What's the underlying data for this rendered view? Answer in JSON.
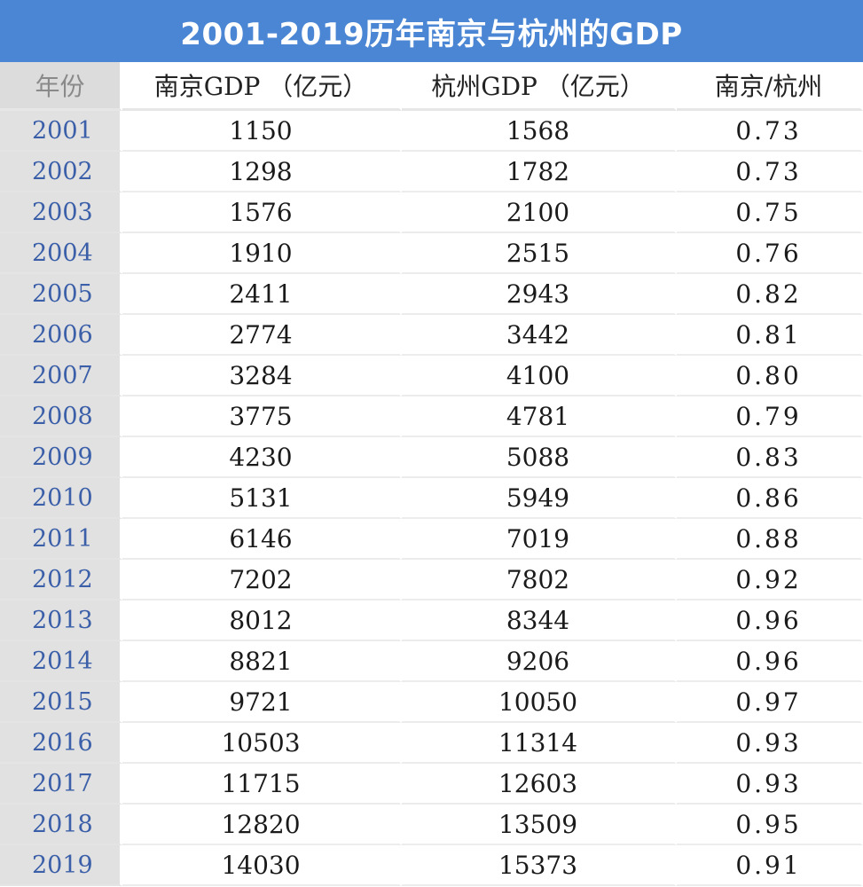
{
  "chart_data": {
    "type": "table",
    "title": "2001-2019历年南京与杭州的GDP",
    "columns": [
      "年份",
      "南京GDP （亿元）",
      "杭州GDP （亿元）",
      "南京/杭州"
    ],
    "rows": [
      {
        "year": "2001",
        "nanjing": "1150",
        "hangzhou": "1568",
        "ratio": "0.73"
      },
      {
        "year": "2002",
        "nanjing": "1298",
        "hangzhou": "1782",
        "ratio": "0.73"
      },
      {
        "year": "2003",
        "nanjing": "1576",
        "hangzhou": "2100",
        "ratio": "0.75"
      },
      {
        "year": "2004",
        "nanjing": "1910",
        "hangzhou": "2515",
        "ratio": "0.76"
      },
      {
        "year": "2005",
        "nanjing": "2411",
        "hangzhou": "2943",
        "ratio": "0.82"
      },
      {
        "year": "2006",
        "nanjing": "2774",
        "hangzhou": "3442",
        "ratio": "0.81"
      },
      {
        "year": "2007",
        "nanjing": "3284",
        "hangzhou": "4100",
        "ratio": "0.80"
      },
      {
        "year": "2008",
        "nanjing": "3775",
        "hangzhou": "4781",
        "ratio": "0.79"
      },
      {
        "year": "2009",
        "nanjing": "4230",
        "hangzhou": "5088",
        "ratio": "0.83"
      },
      {
        "year": "2010",
        "nanjing": "5131",
        "hangzhou": "5949",
        "ratio": "0.86"
      },
      {
        "year": "2011",
        "nanjing": "6146",
        "hangzhou": "7019",
        "ratio": "0.88"
      },
      {
        "year": "2012",
        "nanjing": "7202",
        "hangzhou": "7802",
        "ratio": "0.92"
      },
      {
        "year": "2013",
        "nanjing": "8012",
        "hangzhou": "8344",
        "ratio": "0.96"
      },
      {
        "year": "2014",
        "nanjing": "8821",
        "hangzhou": "9206",
        "ratio": "0.96"
      },
      {
        "year": "2015",
        "nanjing": "9721",
        "hangzhou": "10050",
        "ratio": "0.97"
      },
      {
        "year": "2016",
        "nanjing": "10503",
        "hangzhou": "11314",
        "ratio": "0.93"
      },
      {
        "year": "2017",
        "nanjing": "11715",
        "hangzhou": "12603",
        "ratio": "0.93"
      },
      {
        "year": "2018",
        "nanjing": "12820",
        "hangzhou": "13509",
        "ratio": "0.95"
      },
      {
        "year": "2019",
        "nanjing": "14030",
        "hangzhou": "15373",
        "ratio": "0.91"
      }
    ],
    "colors": {
      "title_bg": "#4a86d4",
      "year_col_bg": "#e1e1e1",
      "year_text": "#3b5fa8"
    }
  }
}
